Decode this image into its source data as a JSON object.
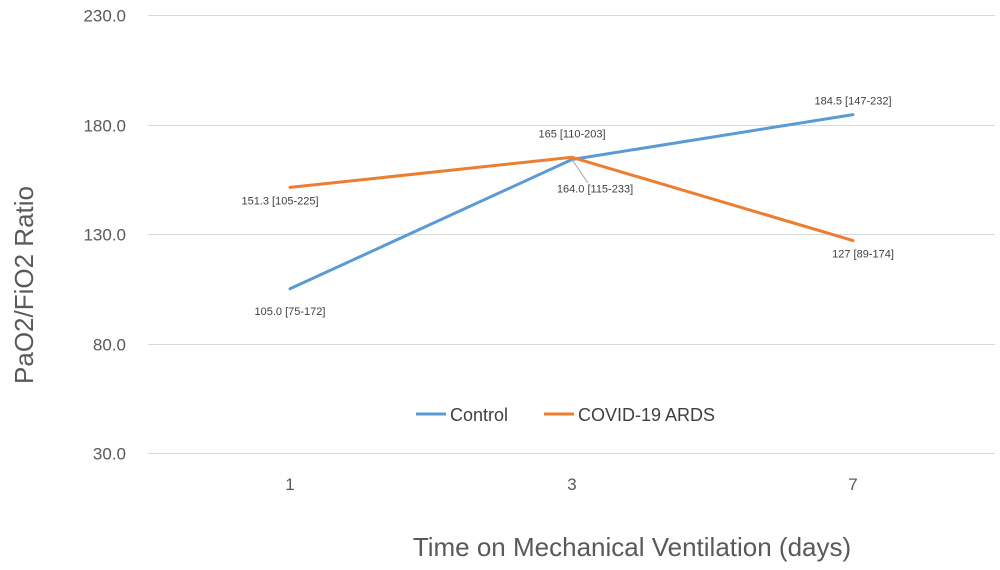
{
  "chart_data": {
    "type": "line",
    "categories": [
      "1",
      "3",
      "7"
    ],
    "ylabel": "PaO2/FiO2 Ratio",
    "xlabel": "Time on Mechanical Ventilation (days)",
    "ylim": [
      30,
      230
    ],
    "yticks": [
      "30.0",
      "80.0",
      "130.0",
      "180.0",
      "230.0"
    ],
    "grid": true,
    "legend_position": "bottom-center",
    "series": [
      {
        "name": "Control",
        "color": "#5b9bd5",
        "values": [
          105.0,
          164.0,
          184.5
        ],
        "labels": [
          "105.0 [75-172]",
          "164.0 [115-233]",
          "184.5 [147-232]"
        ]
      },
      {
        "name": "COVID-19 ARDS",
        "color": "#ed7d31",
        "values": [
          151.3,
          165,
          127
        ],
        "labels": [
          "151.3 [105-225]",
          "165 [110-203]",
          "127 [89-174]"
        ]
      }
    ]
  }
}
